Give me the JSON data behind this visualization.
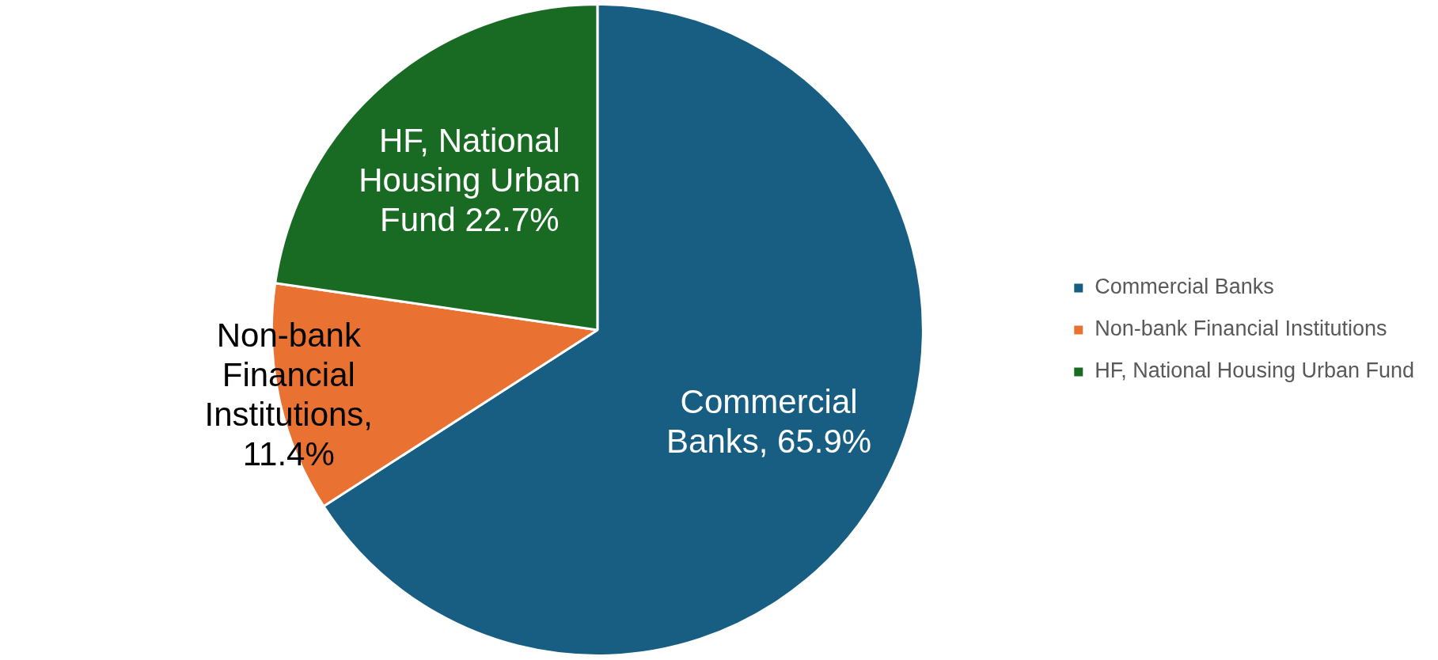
{
  "chart_data": {
    "type": "pie",
    "categories": [
      "Commercial Banks",
      "Non-bank Financial Institutions",
      "HF, National Housing Urban Fund"
    ],
    "values": [
      65.9,
      11.4,
      22.7
    ],
    "colors": [
      "#175e82",
      "#e97132",
      "#196b24"
    ],
    "value_labels": [
      "Commercial Banks, 65.9%",
      "Non-bank Financial Institutions, 11.4%",
      "HF, National Housing Urban Fund 22.7%"
    ],
    "legend": "right"
  }
}
